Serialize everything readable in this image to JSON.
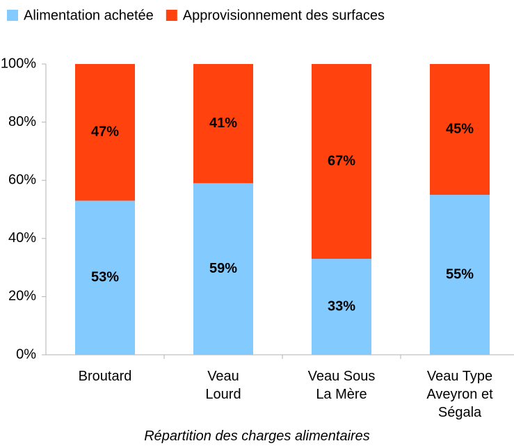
{
  "chart_data": {
    "type": "stacked_bar",
    "title": "Répartition des charges alimentaires",
    "categories": [
      "Broutard",
      "Veau Lourd",
      "Veau Sous La Mère",
      "Veau Type Aveyron et Ségala"
    ],
    "series": [
      {
        "name": "Alimentation achetée",
        "color": "#83caff",
        "values": [
          53,
          59,
          33,
          55
        ],
        "value_labels": [
          "53%",
          "59%",
          "33%",
          "55%"
        ]
      },
      {
        "name": "Approvisionnement des surfaces",
        "color": "#ff420e",
        "values": [
          47,
          41,
          67,
          45
        ],
        "value_labels": [
          "47%",
          "41%",
          "67%",
          "45%"
        ]
      }
    ],
    "ylim": [
      0,
      100
    ],
    "yticks": [
      {
        "value": 0,
        "label": "0%"
      },
      {
        "value": 20,
        "label": "20%"
      },
      {
        "value": 40,
        "label": "40%"
      },
      {
        "value": 60,
        "label": "60%"
      },
      {
        "value": 80,
        "label": "80%"
      },
      {
        "value": 100,
        "label": "100%"
      }
    ],
    "grid": false,
    "legend": "top"
  }
}
